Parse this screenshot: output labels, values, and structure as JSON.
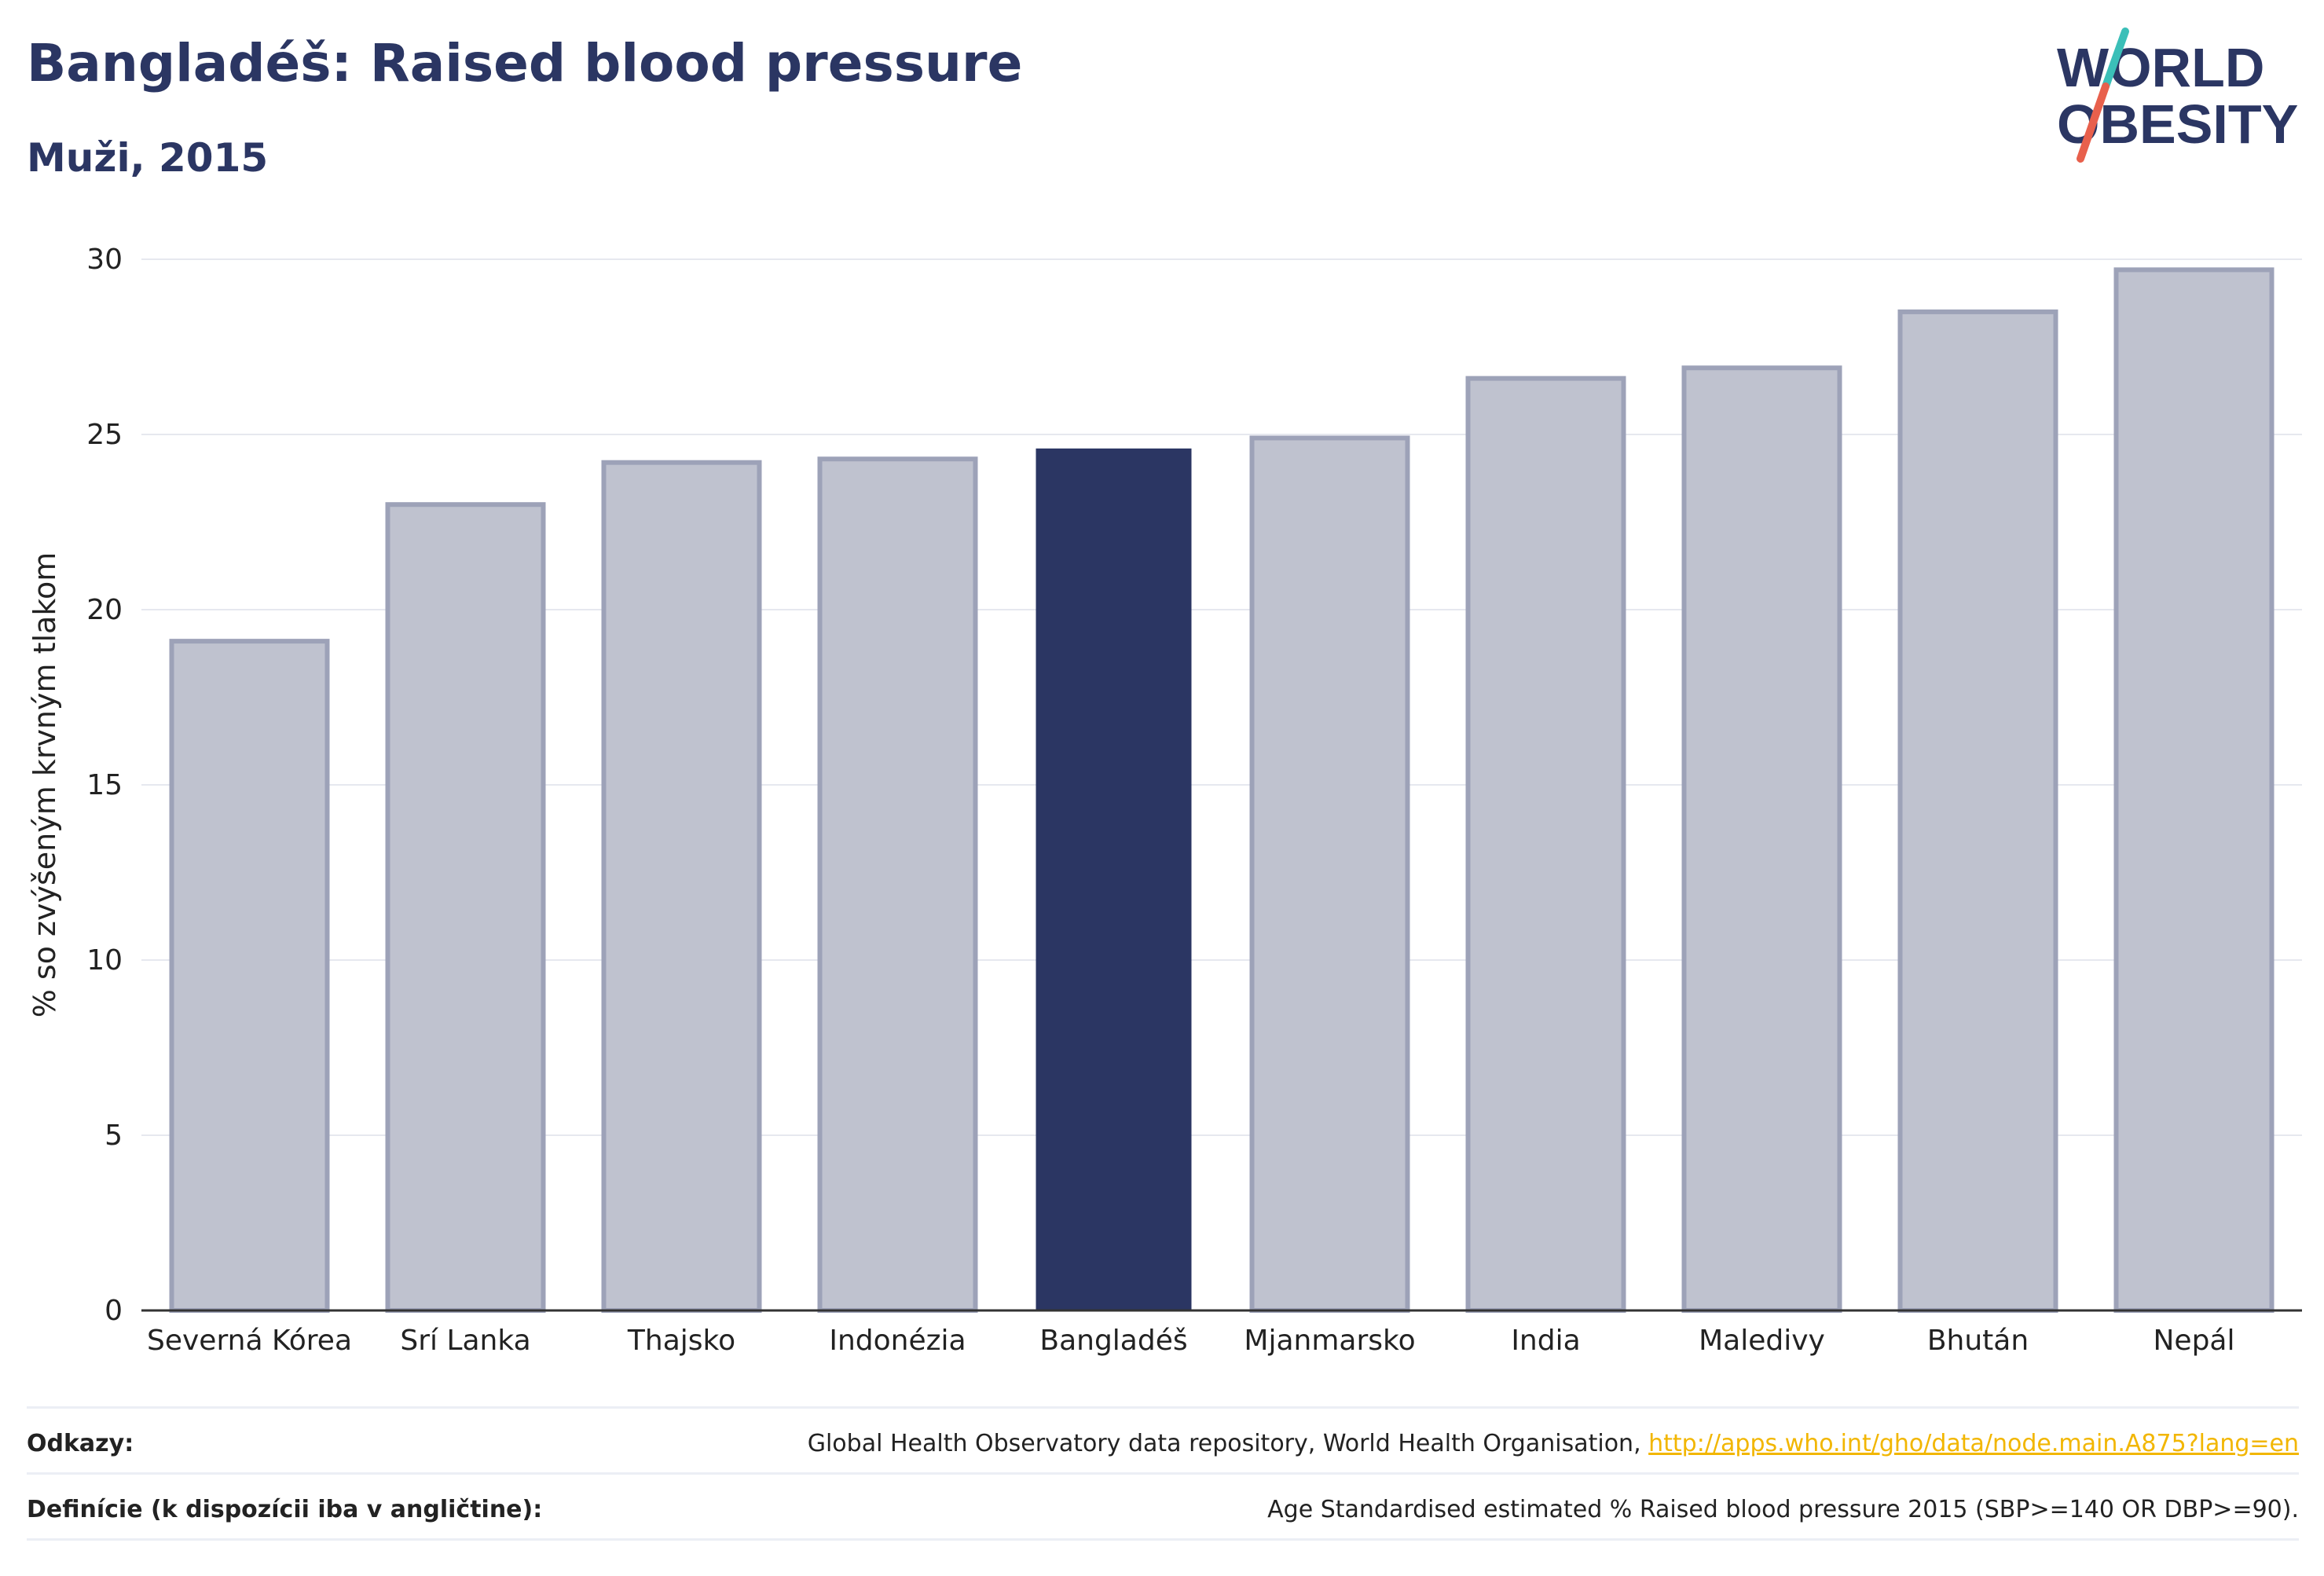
{
  "header": {
    "title": "Bangladéš: Raised blood pressure",
    "subtitle": "Muži, 2015"
  },
  "logo": {
    "line1": "WORLD",
    "line2": "OBESITY",
    "colors": {
      "text": "#2b3663",
      "slash_top": "#3bbfb8",
      "slash_bottom": "#e8604c"
    }
  },
  "chart_data": {
    "type": "bar",
    "categories": [
      "Severná Kórea",
      "Srí Lanka",
      "Thajsko",
      "Indonézia",
      "Bangladéš",
      "Mjanmarsko",
      "India",
      "Maledivy",
      "Bhután",
      "Nepál"
    ],
    "values": [
      19.1,
      23.0,
      24.2,
      24.3,
      24.6,
      24.9,
      26.6,
      26.9,
      28.5,
      29.7
    ],
    "highlight": "Bangladéš",
    "ylabel": "% so zvýšeným krvným tlakom",
    "xlabel": "",
    "ylim": [
      0,
      30
    ],
    "yticks": [
      0,
      5,
      10,
      15,
      20,
      25,
      30
    ],
    "grid": true,
    "colors": {
      "bar": "#bfc2cf",
      "bar_border": "#9da2b8",
      "highlight": "#2b3663",
      "grid": "#e6e8ef"
    }
  },
  "footer": {
    "sources_label": "Odkazy:",
    "sources_text": "Global Health Observatory data repository, World Health Organisation, ",
    "sources_link": "http://apps.who.int/gho/data/node.main.A875?lang=en",
    "definitions_label": "Definície (k dispozícii iba v angličtine):",
    "definitions_text": "Age Standardised estimated % Raised blood pressure 2015 (SBP>=140 OR DBP>=90)."
  }
}
